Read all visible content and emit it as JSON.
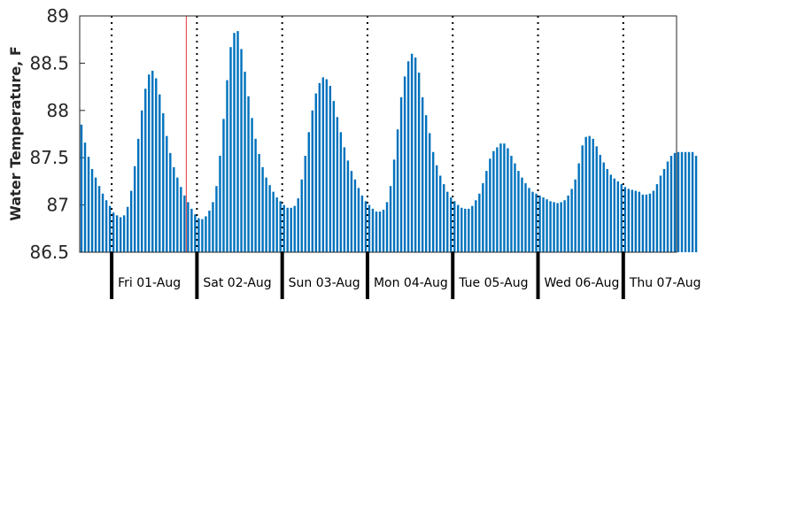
{
  "chart_data": {
    "type": "bar",
    "title": "",
    "xlabel": "",
    "ylabel": "Water Temperature, F",
    "ylim": [
      86.5,
      89
    ],
    "yticks": [
      86.5,
      87,
      87.5,
      88,
      88.5,
      89
    ],
    "ytick_labels": [
      "86.5",
      "87",
      "87.5",
      "88",
      "88.5",
      "89"
    ],
    "x_unit": "hours",
    "x_start": "Thu 31-Jul 15:00",
    "x_range_hours": [
      0,
      168
    ],
    "bar_color": "#0072BD",
    "current_time_color": "#e8383d",
    "current_time_hour": 30,
    "grid": false,
    "day_boundaries_hours": [
      9,
      33,
      57,
      81,
      105,
      129,
      153
    ],
    "day_labels": [
      "Fri 01-Aug",
      "Sat 02-Aug",
      "Sun 03-Aug",
      "Mon 04-Aug",
      "Tue 05-Aug",
      "Wed 06-Aug",
      "Thu 07-Aug"
    ],
    "values": [
      87.85,
      87.66,
      87.51,
      87.38,
      87.29,
      87.2,
      87.12,
      87.05,
      86.99,
      86.92,
      86.89,
      86.87,
      86.89,
      86.98,
      87.15,
      87.41,
      87.7,
      88.0,
      88.23,
      88.38,
      88.42,
      88.34,
      88.17,
      87.97,
      87.73,
      87.55,
      87.4,
      87.29,
      87.19,
      87.1,
      87.03,
      86.96,
      86.9,
      86.86,
      86.85,
      86.88,
      86.94,
      87.03,
      87.2,
      87.52,
      87.91,
      88.32,
      88.67,
      88.82,
      88.84,
      88.65,
      88.41,
      88.15,
      87.92,
      87.7,
      87.54,
      87.4,
      87.29,
      87.21,
      87.14,
      87.08,
      87.04,
      87.0,
      86.97,
      86.97,
      86.99,
      87.07,
      87.27,
      87.52,
      87.77,
      88.0,
      88.18,
      88.29,
      88.35,
      88.33,
      88.26,
      88.1,
      87.93,
      87.77,
      87.61,
      87.47,
      87.36,
      87.27,
      87.18,
      87.1,
      87.04,
      87.0,
      86.96,
      86.93,
      86.93,
      86.95,
      87.03,
      87.2,
      87.48,
      87.8,
      88.14,
      88.36,
      88.52,
      88.6,
      88.56,
      88.4,
      88.14,
      87.95,
      87.76,
      87.56,
      87.42,
      87.31,
      87.22,
      87.14,
      87.08,
      87.04,
      87.0,
      86.97,
      86.96,
      86.96,
      86.99,
      87.05,
      87.12,
      87.23,
      87.36,
      87.49,
      87.57,
      87.61,
      87.65,
      87.65,
      87.6,
      87.52,
      87.44,
      87.36,
      87.29,
      87.23,
      87.18,
      87.14,
      87.12,
      87.1,
      87.08,
      87.06,
      87.04,
      87.03,
      87.02,
      87.03,
      87.05,
      87.1,
      87.17,
      87.27,
      87.44,
      87.63,
      87.72,
      87.73,
      87.7,
      87.62,
      87.53,
      87.45,
      87.38,
      87.32,
      87.28,
      87.25,
      87.22,
      87.19,
      87.17,
      87.16,
      87.15,
      87.14,
      87.11,
      87.11,
      87.12,
      87.15,
      87.22,
      87.31,
      87.38,
      87.46,
      87.52,
      87.55,
      87.56,
      87.56,
      87.56,
      87.56,
      87.56,
      87.52
    ]
  }
}
